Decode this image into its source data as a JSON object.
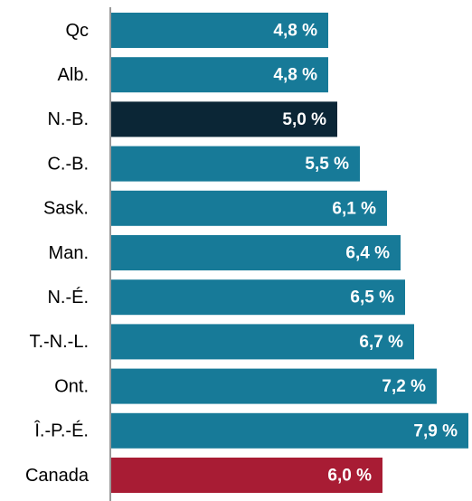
{
  "chart_data": {
    "type": "bar",
    "orientation": "horizontal",
    "categories": [
      "Qc",
      "Alb.",
      "N.-B.",
      "C.-B.",
      "Sask.",
      "Man.",
      "N.-É.",
      "T.-N.-L.",
      "Ont.",
      "Î.-P.-É.",
      "Canada"
    ],
    "values": [
      4.8,
      4.8,
      5.0,
      5.5,
      6.1,
      6.4,
      6.5,
      6.7,
      7.2,
      7.9,
      6.0
    ],
    "value_labels": [
      "4,8 %",
      "4,8 %",
      "5,0 %",
      "5,5 %",
      "6,1 %",
      "6,4 %",
      "6,5 %",
      "6,7 %",
      "7,2 %",
      "7,9 %",
      "6,0 %"
    ],
    "colors": [
      "#177a98",
      "#177a98",
      "#0b2636",
      "#177a98",
      "#177a98",
      "#177a98",
      "#177a98",
      "#177a98",
      "#177a98",
      "#177a98",
      "#a81c34"
    ]
  }
}
